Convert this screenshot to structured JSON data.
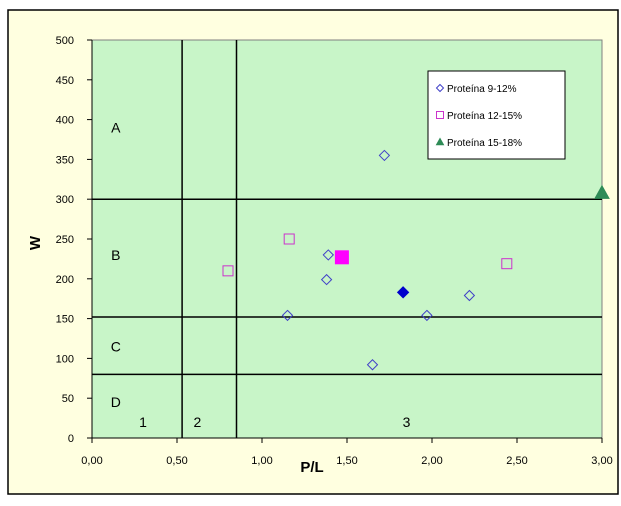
{
  "chart_data": {
    "type": "scatter",
    "xlabel": "P/L",
    "ylabel": "W",
    "xlim": [
      0,
      3
    ],
    "ylim": [
      0,
      500
    ],
    "x_ticks": [
      "0,00",
      "0,50",
      "1,00",
      "1,50",
      "2,00",
      "2,50",
      "3,00"
    ],
    "y_ticks": [
      "0",
      "50",
      "100",
      "150",
      "200",
      "250",
      "300",
      "350",
      "400",
      "450",
      "500"
    ],
    "grid": false,
    "legend_position": "top-right",
    "reference_lines": {
      "horizontal": [
        80,
        152,
        300
      ],
      "vertical": [
        0.53,
        0.85
      ]
    },
    "regions": [
      {
        "label": "A",
        "x": 0.14,
        "y": 390
      },
      {
        "label": "B",
        "x": 0.14,
        "y": 230
      },
      {
        "label": "C",
        "x": 0.14,
        "y": 115
      },
      {
        "label": "D",
        "x": 0.14,
        "y": 45
      },
      {
        "label": "1",
        "x": 0.3,
        "y": 20
      },
      {
        "label": "2",
        "x": 0.62,
        "y": 20
      },
      {
        "label": "3",
        "x": 1.85,
        "y": 20
      }
    ],
    "series": [
      {
        "name": "Proteína 9-12%",
        "marker": "diamond-open",
        "color": "#4040c8",
        "points": [
          {
            "x": 1.72,
            "y": 355
          },
          {
            "x": 1.39,
            "y": 230
          },
          {
            "x": 1.38,
            "y": 199
          },
          {
            "x": 1.15,
            "y": 154
          },
          {
            "x": 1.97,
            "y": 154
          },
          {
            "x": 2.22,
            "y": 179
          },
          {
            "x": 1.65,
            "y": 92
          }
        ],
        "highlight": {
          "x": 1.83,
          "y": 183,
          "marker": "diamond-filled",
          "color": "#0000cc"
        }
      },
      {
        "name": "Proteína 12-15%",
        "marker": "square-open",
        "color": "#cc33cc",
        "points": [
          {
            "x": 1.16,
            "y": 250
          },
          {
            "x": 0.8,
            "y": 210
          },
          {
            "x": 2.44,
            "y": 219
          }
        ],
        "highlight": {
          "x": 1.47,
          "y": 227,
          "marker": "square-filled",
          "color": "#ff00ff"
        }
      },
      {
        "name": "Proteína 15-18%",
        "marker": "triangle-filled",
        "color": "#2e8b57",
        "points": [
          {
            "x": 3.0,
            "y": 308
          }
        ]
      }
    ]
  },
  "colors": {
    "outer_background": "#ffffe0",
    "plot_background": "#c8f5c8",
    "border": "#000000"
  }
}
